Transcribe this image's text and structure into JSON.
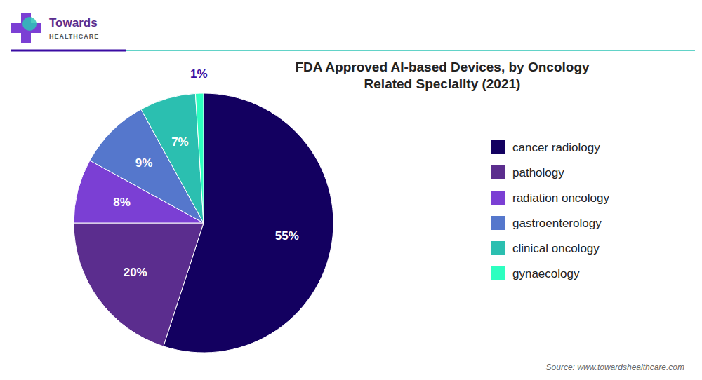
{
  "chart_data": {
    "type": "pie",
    "title": "FDA Approved AI-based Devices, by Oncology\nRelated Speciality (2021)",
    "categories": [
      "cancer radiology",
      "pathology",
      "radiation oncology",
      "gastroenterology",
      "clinical oncology",
      "gynaecology"
    ],
    "values": [
      55,
      20,
      8,
      9,
      7,
      1
    ],
    "value_labels": [
      "55%",
      "20%",
      "8%",
      "9%",
      "7%",
      "1%"
    ],
    "colors": [
      "#130060",
      "#5B2D8E",
      "#7B3FD4",
      "#5577CC",
      "#2BBFB0",
      "#2DFFC0"
    ],
    "data_labels": true,
    "legend": "right",
    "annotations": [
      "Source: www.towardshealthcare.com",
      "Towards",
      "HEALTHCARE"
    ]
  }
}
